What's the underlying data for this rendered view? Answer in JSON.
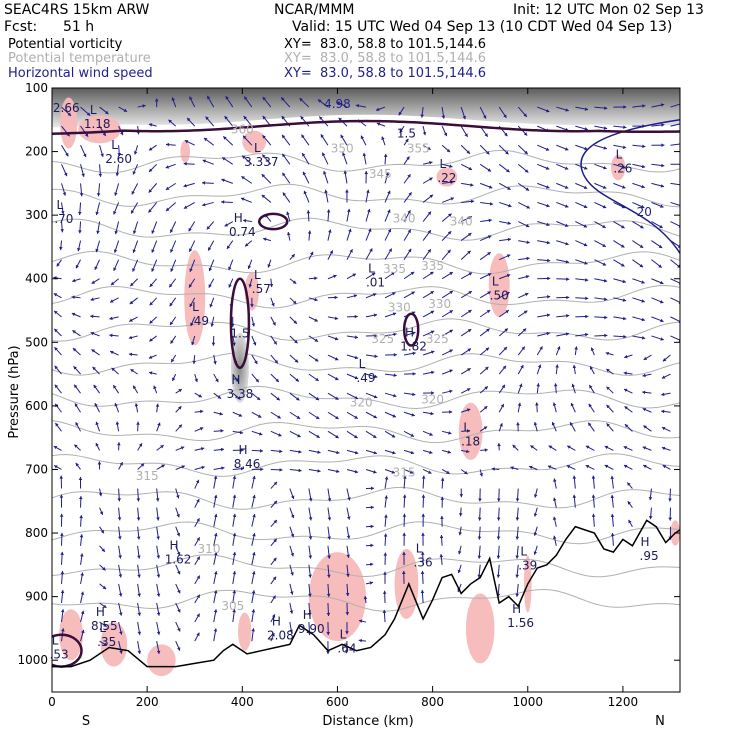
{
  "header": {
    "model": "SEAC4RS 15km ARW",
    "center": "NCAR/MMM",
    "init": "Init: 12 UTC Mon 02 Sep 13",
    "fcst_label": "Fcst:",
    "fcst_value": "51 h",
    "valid": "Valid: 15 UTC Wed 04 Sep 13 (10 CDT Wed 04 Sep 13)"
  },
  "legend": [
    {
      "name": "Potential vorticity",
      "xy": "XY=  83.0, 58.8 to 101.5,144.6",
      "color": "#000000"
    },
    {
      "name": "Potential temperature",
      "xy": "XY=  83.0, 58.8 to 101.5,144.6",
      "color": "#b0b0b0"
    },
    {
      "name": "Horizontal wind speed",
      "xy": "XY=  83.0, 58.8 to 101.5,144.6",
      "color": "#1f1f8a"
    }
  ],
  "colors": {
    "pv_positive_fill": "#f7b8b8",
    "pv_contour": "#3a0d3a",
    "theta_contour": "#b0b0b0",
    "wind_vector": "#1f1f8a",
    "wind_contour": "#1f1f8a",
    "terrain": "#000000"
  },
  "chart_data": {
    "type": "vertical cross-section",
    "xlabel": "Distance (km)",
    "ylabel": "Pressure (hPa)",
    "xlim": [
      0,
      1320
    ],
    "ylim_pressure": [
      1050,
      100
    ],
    "x_ticks": [
      "0",
      "200",
      "400",
      "600",
      "800",
      "1000",
      "1200"
    ],
    "y_ticks": [
      "100",
      "200",
      "300",
      "400",
      "500",
      "600",
      "700",
      "800",
      "900",
      "1000"
    ],
    "x_end_labels": {
      "left": "S",
      "right": "N"
    },
    "terrain_surface_pressure": {
      "x": [
        0,
        40,
        80,
        120,
        160,
        200,
        260,
        300,
        340,
        360,
        380,
        410,
        440,
        470,
        500,
        520,
        550,
        580,
        610,
        640,
        670,
        700,
        720,
        750,
        780,
        800,
        820,
        840,
        860,
        880,
        900,
        920,
        940,
        960,
        980,
        1000,
        1020,
        1040,
        1060,
        1080,
        1100,
        1120,
        1140,
        1160,
        1180,
        1200,
        1220,
        1250,
        1270,
        1290,
        1310,
        1320
      ],
      "pressure": [
        1010,
        1010,
        1000,
        980,
        985,
        1010,
        1010,
        1005,
        1000,
        985,
        975,
        990,
        985,
        980,
        975,
        945,
        960,
        985,
        975,
        985,
        980,
        960,
        935,
        880,
        935,
        905,
        870,
        865,
        895,
        880,
        870,
        840,
        910,
        900,
        915,
        880,
        855,
        850,
        835,
        810,
        790,
        795,
        800,
        825,
        830,
        810,
        820,
        780,
        790,
        815,
        800,
        795
      ]
    },
    "theta_contours": [
      {
        "value": "305",
        "label_x": 380,
        "label_p": 915
      },
      {
        "value": "310",
        "label_x": 330,
        "label_p": 825
      },
      {
        "value": "315",
        "label_x": 200,
        "label_p": 710
      },
      {
        "value": "315",
        "label_x": 740,
        "label_p": 705
      },
      {
        "value": "320",
        "label_x": 650,
        "label_p": 595
      },
      {
        "value": "320",
        "label_x": 800,
        "label_p": 590
      },
      {
        "value": "325",
        "label_x": 695,
        "label_p": 495
      },
      {
        "value": "325",
        "label_x": 810,
        "label_p": 495
      },
      {
        "value": "330",
        "label_x": 730,
        "label_p": 445
      },
      {
        "value": "330",
        "label_x": 815,
        "label_p": 440
      },
      {
        "value": "335",
        "label_x": 720,
        "label_p": 385
      },
      {
        "value": "335",
        "label_x": 800,
        "label_p": 380
      },
      {
        "value": "340",
        "label_x": 740,
        "label_p": 305
      },
      {
        "value": "340",
        "label_x": 860,
        "label_p": 310
      },
      {
        "value": "345",
        "label_x": 690,
        "label_p": 235
      },
      {
        "value": "350",
        "label_x": 610,
        "label_p": 195
      },
      {
        "value": "355",
        "label_x": 770,
        "label_p": 195
      },
      {
        "value": "360",
        "label_x": 400,
        "label_p": 165
      }
    ],
    "pv_extrema": [
      {
        "type": "L",
        "value": "1.18",
        "x": 95,
        "p": 150
      },
      {
        "type": "L",
        "value": "2.60",
        "x": 140,
        "p": 205
      },
      {
        "type": "L",
        "value": ".70",
        "x": 25,
        "p": 300
      },
      {
        "type": "L",
        "value": "3.337",
        "x": 440,
        "p": 210
      },
      {
        "type": "H",
        "value": "0.74",
        "x": 400,
        "p": 320
      },
      {
        "type": "L",
        "value": ".57",
        "x": 440,
        "p": 410
      },
      {
        "type": "L",
        "value": ".49",
        "x": 310,
        "p": 460
      },
      {
        "type": "H",
        "value": "3.38",
        "x": 395,
        "p": 575
      },
      {
        "type": "H",
        "value": "8.46",
        "x": 410,
        "p": 685
      },
      {
        "type": "L",
        "value": ".01",
        "x": 680,
        "p": 400
      },
      {
        "type": "H",
        "value": "1.82",
        "x": 760,
        "p": 500
      },
      {
        "type": "L",
        "value": ".49",
        "x": 660,
        "p": 550
      },
      {
        "type": "L",
        "value": ".22",
        "x": 830,
        "p": 235
      },
      {
        "type": "L",
        "value": ".50",
        "x": 940,
        "p": 420
      },
      {
        "type": "L",
        "value": ".18",
        "x": 880,
        "p": 650
      },
      {
        "type": "L",
        "value": ".26",
        "x": 1200,
        "p": 220
      },
      {
        "type": "H",
        "value": "1.62",
        "x": 265,
        "p": 835
      },
      {
        "type": "H",
        "value": "8.55",
        "x": 110,
        "p": 940
      },
      {
        "type": "L",
        "value": ".35",
        "x": 115,
        "p": 965
      },
      {
        "type": "L",
        "value": ".53",
        "x": 15,
        "p": 985
      },
      {
        "type": "H",
        "value": "2.08",
        "x": 480,
        "p": 955
      },
      {
        "type": "H",
        "value": "9.90",
        "x": 545,
        "p": 945
      },
      {
        "type": "L",
        "value": ".64",
        "x": 620,
        "p": 975
      },
      {
        "type": "L",
        "value": ".36",
        "x": 780,
        "p": 840
      },
      {
        "type": "L",
        "value": ".39",
        "x": 1000,
        "p": 845
      },
      {
        "type": "H",
        "value": "1.56",
        "x": 985,
        "p": 935
      },
      {
        "type": "H",
        "value": ".95",
        "x": 1255,
        "p": 830
      },
      {
        "type": "",
        "value": "1.5",
        "x": 395,
        "p": 480
      },
      {
        "type": "",
        "value": "1.5",
        "x": 745,
        "p": 165
      },
      {
        "type": "",
        "value": "2.66",
        "x": 30,
        "p": 125
      }
    ],
    "wind_labels": [
      {
        "value": "4.98",
        "x": 600,
        "p": 125
      },
      {
        "value": "20",
        "x": 1245,
        "p": 295
      }
    ]
  }
}
